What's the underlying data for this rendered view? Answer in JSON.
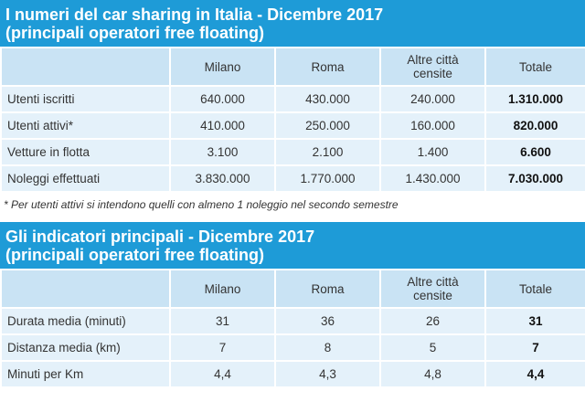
{
  "tables": [
    {
      "title": [
        "I numeri del car sharing in Italia - Dicembre 2017",
        "(principali operatori free floating)"
      ],
      "headers": [
        "Milano",
        "Roma",
        "Altre città censite",
        "Totale"
      ],
      "rows": [
        [
          "Utenti iscritti",
          "640.000",
          "430.000",
          "240.000",
          "1.310.000"
        ],
        [
          "Utenti attivi*",
          "410.000",
          "250.000",
          "160.000",
          "820.000"
        ],
        [
          "Vetture in flotta",
          "3.100",
          "2.100",
          "1.400",
          "6.600"
        ],
        [
          "Noleggi effettuati",
          "3.830.000",
          "1.770.000",
          "1.430.000",
          "7.030.000"
        ]
      ],
      "footnote": "* Per utenti attivi si intendono quelli con almeno 1 noleggio nel secondo semestre"
    },
    {
      "title": [
        "Gli indicatori principali - Dicembre 2017",
        "(principali operatori free floating)"
      ],
      "headers": [
        "Milano",
        "Roma",
        "Altre città censite",
        "Totale"
      ],
      "rows": [
        [
          "Durata media (minuti)",
          "31",
          "36",
          "26",
          "31"
        ],
        [
          "Distanza media (km)",
          "7",
          "8",
          "5",
          "7"
        ],
        [
          "Minuti per Km",
          "4,4",
          "4,3",
          "4,8",
          "4,4"
        ]
      ]
    }
  ]
}
